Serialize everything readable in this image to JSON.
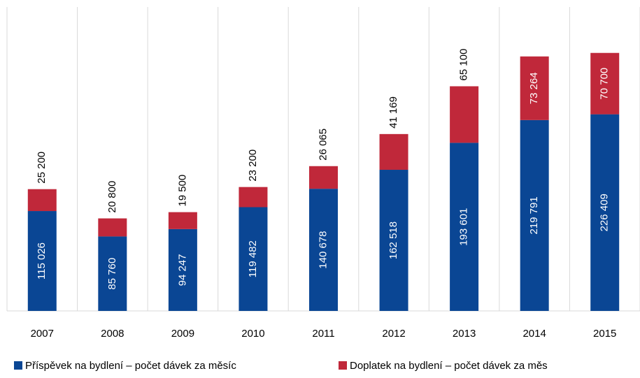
{
  "chart_data": {
    "type": "stacked_bar",
    "categories": [
      "2007",
      "2008",
      "2009",
      "2010",
      "2011",
      "2012",
      "2013",
      "2014",
      "2015"
    ],
    "series": [
      {
        "name": "Příspěvek na bydlení – počet dávek za měsíc",
        "color": "#0a4694",
        "values": [
          115026,
          85760,
          94247,
          119482,
          140678,
          162518,
          193601,
          219791,
          226409
        ],
        "value_labels": [
          "115 026",
          "85 760",
          "94 247",
          "119 482",
          "140 678",
          "162 518",
          "193 601",
          "219 791",
          "226 409"
        ]
      },
      {
        "name": "Doplatek na bydlení – počet dávek za měs",
        "color": "#c0283a",
        "values": [
          25200,
          20800,
          19500,
          23200,
          26065,
          41169,
          65100,
          73264,
          70700
        ],
        "value_labels": [
          "25 200",
          "20 800",
          "19 500",
          "23 200",
          "26 065",
          "41 169",
          "65 100",
          "73 264",
          "70 700"
        ]
      }
    ],
    "ylim": [
      0,
      350000
    ],
    "grid": true
  }
}
